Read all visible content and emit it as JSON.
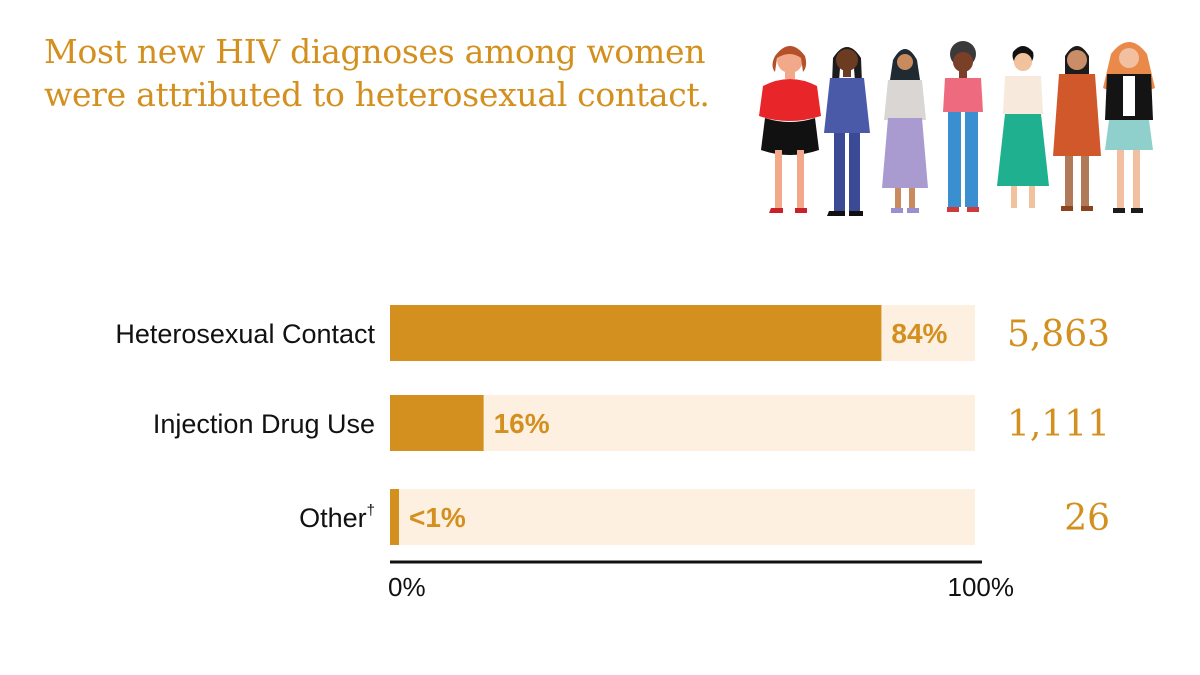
{
  "title_lines": [
    "Most new HIV diagnoses among women",
    "were attributed to heterosexual contact."
  ],
  "colors": {
    "accent": "#d4901f",
    "bar_fill": "#d4901f",
    "bar_track": "#fdf0e1",
    "text": "#111111"
  },
  "illustration": {
    "icon": "group-of-women-icon"
  },
  "chart_data": {
    "type": "bar",
    "orientation": "horizontal",
    "categories": [
      "Heterosexual Contact",
      "Injection Drug Use",
      "Other"
    ],
    "category_superscripts": [
      "",
      "",
      "†"
    ],
    "values": [
      84,
      16,
      1
    ],
    "value_labels": [
      "84%",
      "16%",
      "<1%"
    ],
    "counts": [
      "5,863",
      "1,111",
      "26"
    ],
    "xlim": [
      0,
      100
    ],
    "x_ticks": [
      "0%",
      "100%"
    ],
    "grid": false,
    "legend": "none"
  }
}
